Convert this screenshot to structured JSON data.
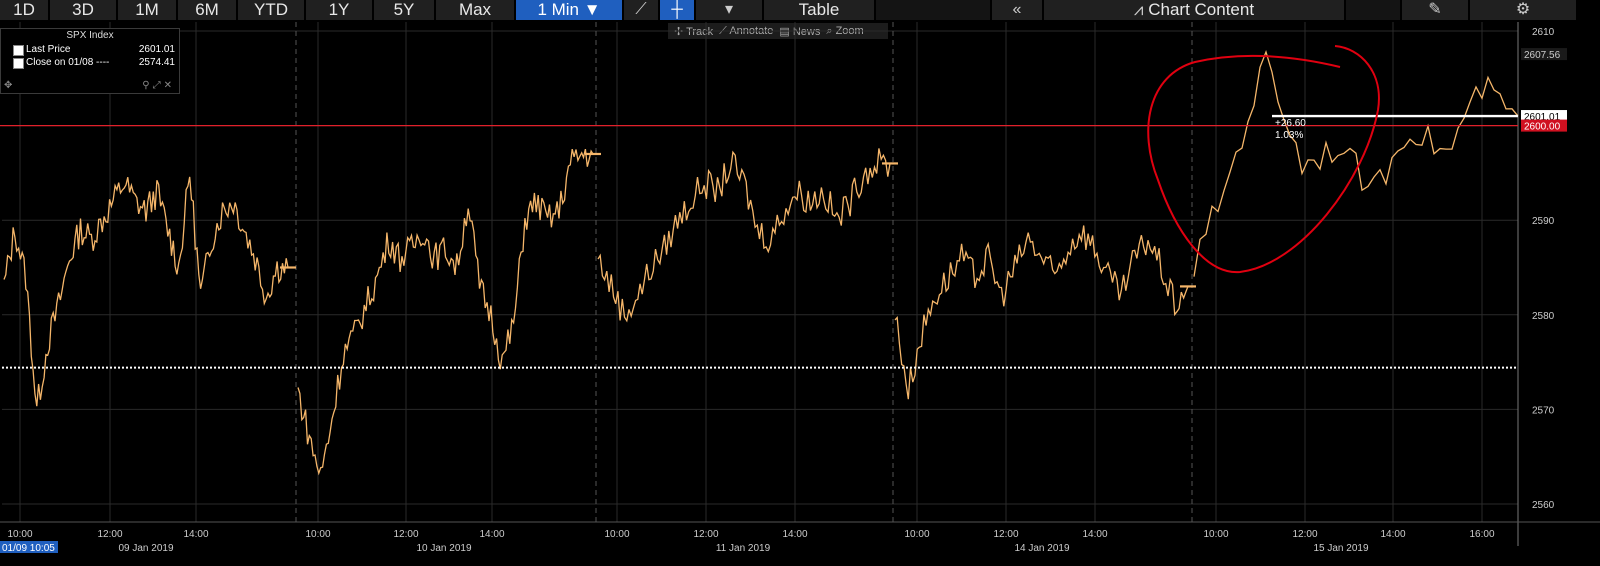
{
  "toolbar": {
    "ranges": [
      "1D",
      "3D",
      "1M",
      "6M",
      "YTD",
      "1Y",
      "5Y",
      "Max"
    ],
    "interval": "1 Min",
    "interval_arrow": "▼",
    "line_icon": "line-chart-icon",
    "bar_icon": "bar-chart-icon",
    "more_icon": "▾",
    "table_label": "Table",
    "collapse_icon": "«",
    "chart_content_label": "Chart Content",
    "edit_icon": "edit-icon",
    "settings_icon": "gear-icon"
  },
  "subtools": {
    "track": "Track",
    "annotate": "Annotate",
    "news": "News",
    "zoom": "Zoom"
  },
  "legend": {
    "title": "SPX Index",
    "rows": [
      {
        "label": "Last Price",
        "value": "2601.01"
      },
      {
        "label": "Close on 01/08 ----",
        "value": "2574.41"
      }
    ]
  },
  "annotations": {
    "change_abs": "+26.60",
    "change_pct": "1.03%",
    "cursor_date": "01/09 10:05"
  },
  "colors": {
    "price_line": "#f5b66a",
    "prev_close": "#ffffff",
    "ref_line": "#e0202a",
    "highlight_circle": "#e00010",
    "grid": "#2a2a2a"
  },
  "chart_data": {
    "type": "line",
    "title": "SPX Index",
    "series": [
      {
        "name": "Last Price",
        "sessions": [
          {
            "date": "09 Jan 2019",
            "values": [
              2583,
              2589,
              2584,
              2570,
              2577,
              2581,
              2586,
              2589,
              2588,
              2590,
              2592,
              2594,
              2592,
              2591,
              2593,
              2589,
              2585,
              2595,
              2582,
              2588,
              2591,
              2592,
              2589,
              2586,
              2582,
              2585,
              2585
            ]
          },
          {
            "date": "10 Jan 2019",
            "values": [
              2572,
              2567,
              2563,
              2569,
              2576,
              2578,
              2581,
              2584,
              2588,
              2586,
              2587,
              2589,
              2586,
              2587,
              2585,
              2592,
              2583,
              2580,
              2575,
              2579,
              2590,
              2592,
              2590,
              2591,
              2596,
              2597,
              2597
            ]
          },
          {
            "date": "11 Jan 2019",
            "values": [
              2586,
              2583,
              2580,
              2582,
              2585,
              2587,
              2590,
              2592,
              2594,
              2593,
              2596,
              2594,
              2589,
              2588,
              2591,
              2593,
              2592,
              2593,
              2590,
              2592,
              2595,
              2596,
              2596
            ]
          },
          {
            "date": "14 Jan 2019",
            "values": [
              2580,
              2572,
              2578,
              2582,
              2584,
              2586,
              2584,
              2586,
              2582,
              2585,
              2588,
              2586,
              2584,
              2587,
              2589,
              2587,
              2584,
              2582,
              2586,
              2588,
              2585,
              2581,
              2583
            ]
          },
          {
            "date": "15 Jan 2019",
            "values": [
              2585,
              2595,
              2607,
              2596,
              2598,
              2593,
              2600,
              2597,
              2604,
              2601
            ]
          }
        ]
      }
    ],
    "prev_close": 2574.41,
    "last_price": 2601.01,
    "reference_level": 2600.0,
    "reference_label": "2600.00",
    "top_label": "2607.56",
    "ylim": [
      2558,
      2612
    ],
    "yticks": [
      2560,
      2570,
      2580,
      2590,
      2600,
      2610
    ],
    "ytick_labels": [
      "2560",
      "2570",
      "2580",
      "2590",
      "",
      "2610"
    ],
    "xtick_labels": [
      [
        "10:00",
        "12:00",
        "14:00"
      ],
      [
        "10:00",
        "12:00",
        "14:00"
      ],
      [
        "10:00",
        "12:00",
        "14:00"
      ],
      [
        "10:00",
        "12:00",
        "14:00"
      ],
      [
        "10:00",
        "12:00",
        "14:00",
        "16:00"
      ]
    ],
    "date_labels": [
      "09 Jan 2019",
      "10 Jan 2019",
      "11 Jan 2019",
      "14 Jan 2019",
      "15 Jan 2019"
    ]
  }
}
